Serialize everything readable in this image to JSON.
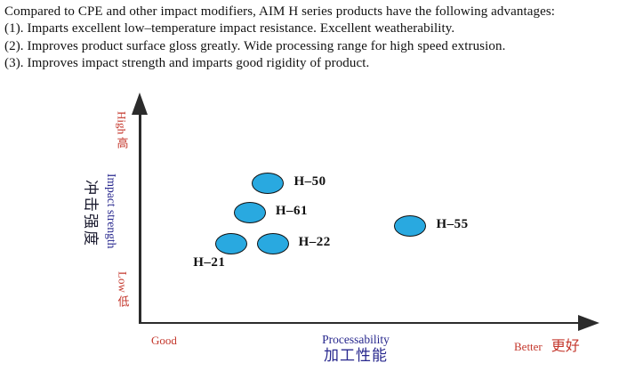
{
  "intro": {
    "lines": [
      "Compared to CPE and other impact modifiers, AIM H series products have the following advantages:",
      "(1). Imparts excellent low–temperature impact resistance. Excellent weatherability.",
      "(2). Improves product surface gloss greatly. Wide processing range for high speed extrusion.",
      "(3). Improves impact strength and imparts good rigidity of product."
    ]
  },
  "chart": {
    "y_axis": {
      "high_label": "High 高",
      "label_en": "Impact strength",
      "label_cn": "冲击强度",
      "low_label": "Low 低"
    },
    "x_axis": {
      "good_label": "Good",
      "label_en": "Processability",
      "label_cn": "加工性能",
      "better_label": "Better",
      "better_label_cn": "更好"
    }
  },
  "colors": {
    "bubble_fill": "#29a9e0",
    "bubble_stroke": "#111111",
    "accent_red": "#c4372c",
    "accent_navy": "#28288e",
    "axis": "#2b2b2b"
  },
  "chart_data": {
    "type": "scatter",
    "title": "",
    "xlabel": "Processability 加工性能",
    "ylabel": "Impact strength 冲击强度",
    "x_axis_endpoints": [
      "Good",
      "Better 更好"
    ],
    "y_axis_endpoints": [
      "Low 低",
      "High 高"
    ],
    "xlim": [
      0,
      10
    ],
    "ylim": [
      0,
      10
    ],
    "grid": false,
    "legend": false,
    "points": [
      {
        "label": "H–50",
        "x": 2.8,
        "y": 6.2,
        "label_position": "right"
      },
      {
        "label": "H–61",
        "x": 2.4,
        "y": 4.9,
        "label_position": "right"
      },
      {
        "label": "H–21",
        "x": 2.0,
        "y": 3.5,
        "label_position": "below-left"
      },
      {
        "label": "H–22",
        "x": 2.9,
        "y": 3.5,
        "label_position": "right"
      },
      {
        "label": "H–55",
        "x": 5.9,
        "y": 4.3,
        "label_position": "right"
      }
    ]
  }
}
